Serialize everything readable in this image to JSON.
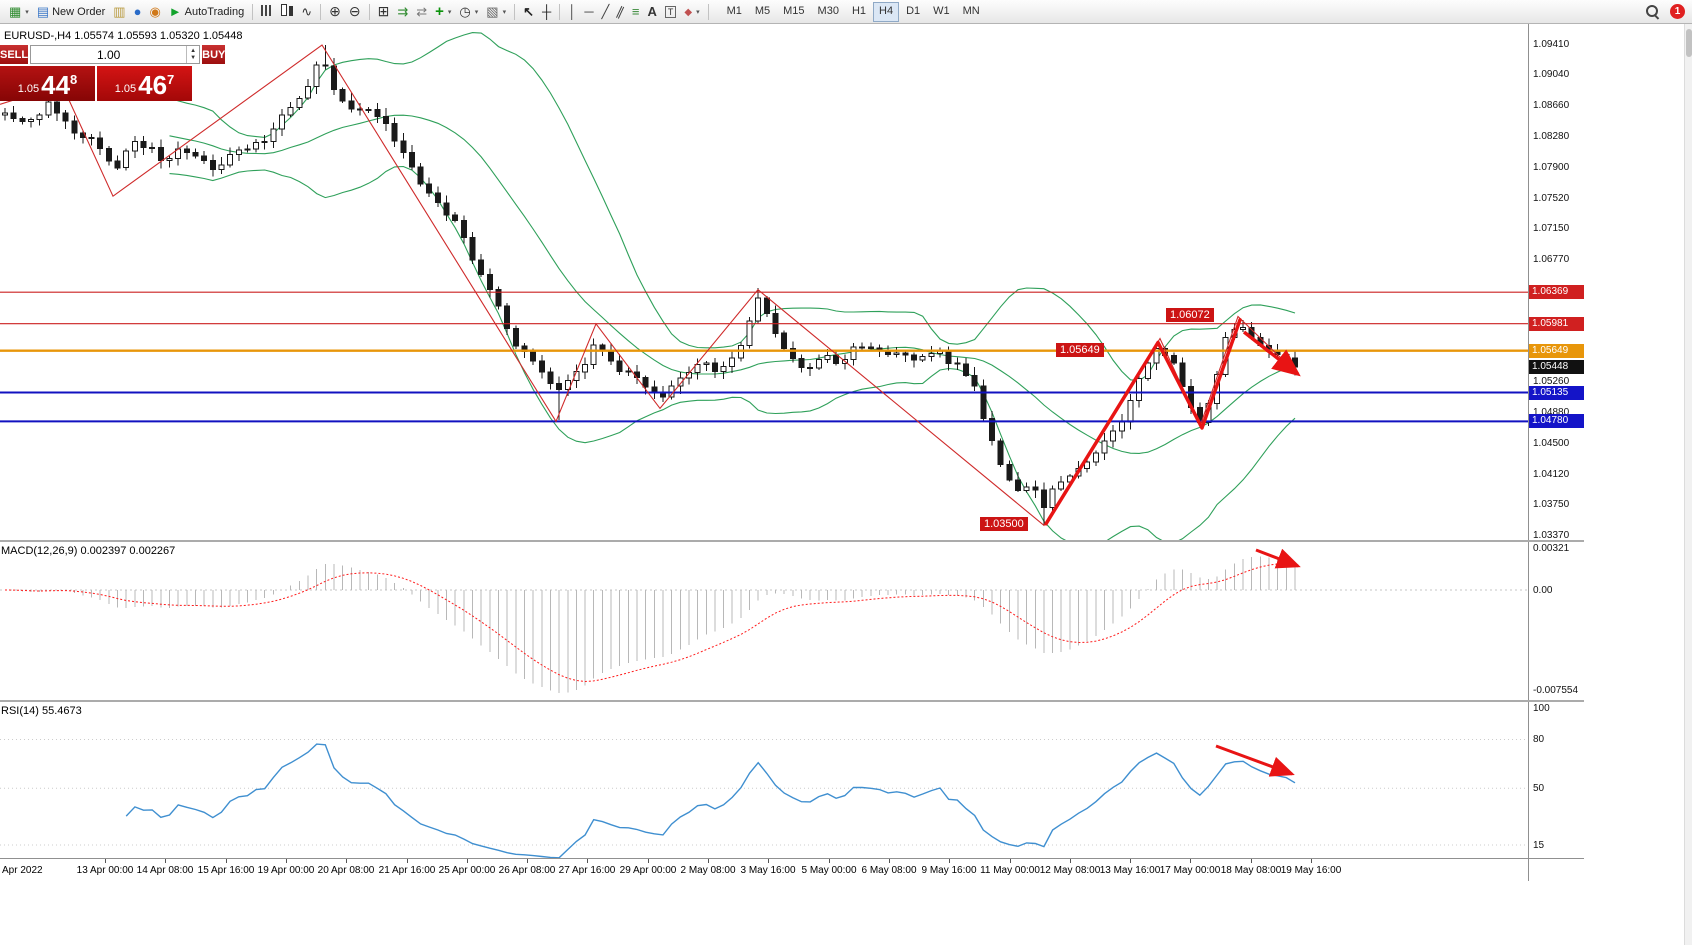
{
  "toolbar": {
    "items": [
      {
        "k": "icon",
        "name": "new-chart-icon",
        "caret": true
      },
      {
        "k": "btn",
        "name": "new-order-button",
        "label": "New Order"
      },
      {
        "k": "icon",
        "name": "print-icon"
      },
      {
        "k": "icon",
        "name": "profile-icon"
      },
      {
        "k": "icon",
        "name": "community-icon"
      },
      {
        "k": "btn",
        "name": "autotrading-button",
        "label": "AutoTrading"
      },
      {
        "k": "sep"
      },
      {
        "k": "icon",
        "name": "bar-chart-icon"
      },
      {
        "k": "icon",
        "name": "candlestick-chart-icon"
      },
      {
        "k": "icon",
        "name": "line-chart-icon"
      },
      {
        "k": "sep"
      },
      {
        "k": "icon",
        "name": "zoom-in-icon"
      },
      {
        "k": "icon",
        "name": "zoom-out-icon"
      },
      {
        "k": "sep"
      },
      {
        "k": "icon",
        "name": "tile-windows-icon"
      },
      {
        "k": "icon",
        "name": "autoscroll-icon"
      },
      {
        "k": "icon",
        "name": "chart-shift-icon"
      },
      {
        "k": "icon",
        "name": "indicators-icon",
        "caret": true
      },
      {
        "k": "icon",
        "name": "periods-icon",
        "caret": true
      },
      {
        "k": "icon",
        "name": "templates-icon",
        "caret": true
      },
      {
        "k": "sep"
      },
      {
        "k": "icon",
        "name": "cursor-icon"
      },
      {
        "k": "icon",
        "name": "crosshair-icon"
      },
      {
        "k": "sep"
      },
      {
        "k": "icon",
        "name": "vertical-line-icon"
      },
      {
        "k": "icon",
        "name": "horizontal-line-icon"
      },
      {
        "k": "icon",
        "name": "trendline-icon"
      },
      {
        "k": "icon",
        "name": "equidistant-channel-icon"
      },
      {
        "k": "icon",
        "name": "fibonacci-icon"
      },
      {
        "k": "icon",
        "name": "text-icon"
      },
      {
        "k": "icon",
        "name": "text-label-icon"
      },
      {
        "k": "icon",
        "name": "shapes-icon",
        "caret": true
      },
      {
        "k": "sep"
      }
    ],
    "timeframes": [
      "M1",
      "M5",
      "M15",
      "M30",
      "H1",
      "H4",
      "D1",
      "W1",
      "MN"
    ],
    "active_timeframe": "H4",
    "notification_count": "1"
  },
  "chart": {
    "title": "EURUSD-,H4 1.05574 1.05593 1.05320 1.05448"
  },
  "one_click": {
    "sell_label": "SELL",
    "buy_label": "BUY",
    "volume": "1.00",
    "sell": {
      "prefix": "1.05",
      "big": "44",
      "sup": "8"
    },
    "buy": {
      "prefix": "1.05",
      "big": "46",
      "sup": "7"
    }
  },
  "price_axis": {
    "ticks": [
      {
        "v": "1.09410",
        "t": "plain"
      },
      {
        "v": "1.09040",
        "t": "plain"
      },
      {
        "v": "1.08660",
        "t": "plain"
      },
      {
        "v": "1.08280",
        "t": "plain"
      },
      {
        "v": "1.07900",
        "t": "plain"
      },
      {
        "v": "1.07520",
        "t": "plain"
      },
      {
        "v": "1.07150",
        "t": "plain"
      },
      {
        "v": "1.06770",
        "t": "plain"
      },
      {
        "v": "1.06369",
        "t": "red"
      },
      {
        "v": "1.05981",
        "t": "red"
      },
      {
        "v": "1.05649",
        "t": "orange"
      },
      {
        "v": "1.05448",
        "t": "black"
      },
      {
        "v": "1.05260",
        "t": "plain"
      },
      {
        "v": "1.05135",
        "t": "blue"
      },
      {
        "v": "1.04880",
        "t": "plain"
      },
      {
        "v": "1.04780",
        "t": "blue"
      },
      {
        "v": "1.04500",
        "t": "plain"
      },
      {
        "v": "1.04120",
        "t": "plain"
      },
      {
        "v": "1.03750",
        "t": "plain"
      },
      {
        "v": "1.03370",
        "t": "plain"
      }
    ]
  },
  "macd": {
    "label": "MACD(12,26,9) 0.002397 0.002267",
    "ticks": [
      "0.00321",
      "0.00",
      "-0.007554"
    ]
  },
  "rsi": {
    "label": "RSI(14) 55.4673",
    "ticks": [
      "100",
      "80",
      "50",
      "15"
    ]
  },
  "time_axis": {
    "labels": [
      "Apr 2022",
      "13 Apr 00:00",
      "14 Apr 08:00",
      "15 Apr 16:00",
      "19 Apr 00:00",
      "20 Apr 08:00",
      "21 Apr 16:00",
      "25 Apr 00:00",
      "26 Apr 08:00",
      "27 Apr 16:00",
      "29 Apr 00:00",
      "2 May 08:00",
      "3 May 16:00",
      "5 May 00:00",
      "6 May 08:00",
      "9 May 16:00",
      "11 May 00:00",
      "12 May 08:00",
      "13 May 16:00",
      "17 May 00:00",
      "18 May 08:00",
      "19 May 16:00"
    ]
  },
  "colors": {
    "candle": "#1a1a1a",
    "band_green": "#2fa05a",
    "zigzag_red": "#cf2b2b",
    "arrow_red": "#e81414",
    "level_red": "#cc2020",
    "level_orange": "#e8960a",
    "level_blue": "#1212c0",
    "hist_gray": "#b8b8b8",
    "signal_red": "#ff1c1c",
    "rsi_blue": "#3f8fd0",
    "annotation_bg": "#cc1414"
  },
  "chart_data": {
    "type": "candlestick",
    "symbol": "EURUSD-",
    "timeframe": "H4",
    "ohlc_display": {
      "open": "1.05574",
      "high": "1.05593",
      "low": "1.05320",
      "close": "1.05448"
    },
    "price_panel": {
      "ylim": [
        1.0337,
        1.0941
      ],
      "candle_count": 150,
      "x_first": 5,
      "x_last": 1295,
      "last_close": 1.05448,
      "bollinger": {
        "period": 20,
        "dev": 2
      },
      "close_anchors": [
        [
          0,
          1.0858
        ],
        [
          25,
          1.0842
        ],
        [
          48,
          1.0868
        ],
        [
          72,
          1.0838
        ],
        [
          95,
          1.0826
        ],
        [
          113,
          1.0788
        ],
        [
          138,
          1.0822
        ],
        [
          162,
          1.0802
        ],
        [
          188,
          1.0812
        ],
        [
          214,
          1.0792
        ],
        [
          240,
          1.0812
        ],
        [
          264,
          1.0826
        ],
        [
          288,
          1.086
        ],
        [
          308,
          1.0893
        ],
        [
          322,
          1.0928
        ],
        [
          338,
          1.0878
        ],
        [
          355,
          1.0856
        ],
        [
          372,
          1.0862
        ],
        [
          392,
          1.0832
        ],
        [
          408,
          1.0796
        ],
        [
          424,
          1.0766
        ],
        [
          440,
          1.0739
        ],
        [
          456,
          1.0722
        ],
        [
          470,
          1.0684
        ],
        [
          486,
          1.0648
        ],
        [
          500,
          1.0622
        ],
        [
          514,
          1.0572
        ],
        [
          530,
          1.0553
        ],
        [
          545,
          1.0533
        ],
        [
          557,
          1.0509
        ],
        [
          572,
          1.0528
        ],
        [
          586,
          1.0552
        ],
        [
          596,
          1.0572
        ],
        [
          610,
          1.0549
        ],
        [
          626,
          1.0537
        ],
        [
          642,
          1.0523
        ],
        [
          660,
          1.0507
        ],
        [
          680,
          1.053
        ],
        [
          700,
          1.0547
        ],
        [
          720,
          1.0542
        ],
        [
          740,
          1.0572
        ],
        [
          758,
          1.0628
        ],
        [
          774,
          1.0592
        ],
        [
          790,
          1.0553
        ],
        [
          806,
          1.0538
        ],
        [
          822,
          1.056
        ],
        [
          840,
          1.0552
        ],
        [
          858,
          1.057
        ],
        [
          878,
          1.0562
        ],
        [
          898,
          1.0566
        ],
        [
          918,
          1.0556
        ],
        [
          938,
          1.0562
        ],
        [
          954,
          1.0546
        ],
        [
          970,
          1.0536
        ],
        [
          984,
          1.0484
        ],
        [
          1000,
          1.0424
        ],
        [
          1014,
          1.0393
        ],
        [
          1030,
          1.0398
        ],
        [
          1044,
          1.0377
        ],
        [
          1058,
          1.0402
        ],
        [
          1074,
          1.0412
        ],
        [
          1090,
          1.0432
        ],
        [
          1104,
          1.0452
        ],
        [
          1120,
          1.0472
        ],
        [
          1134,
          1.0512
        ],
        [
          1148,
          1.0548
        ],
        [
          1160,
          1.0572
        ],
        [
          1174,
          1.0546
        ],
        [
          1188,
          1.0502
        ],
        [
          1200,
          1.0479
        ],
        [
          1214,
          1.0522
        ],
        [
          1226,
          1.0578
        ],
        [
          1238,
          1.0602
        ],
        [
          1252,
          1.0582
        ],
        [
          1264,
          1.0572
        ],
        [
          1278,
          1.0558
        ],
        [
          1295,
          1.0545
        ]
      ],
      "forced_points": [
        {
          "x": 322,
          "type": "high",
          "price": 1.0941
        },
        {
          "x": 556,
          "type": "low",
          "price": 1.048
        },
        {
          "x": 758,
          "type": "high",
          "price": 1.0642
        },
        {
          "x": 1044,
          "type": "low",
          "price": 1.035
        }
      ],
      "levels": [
        {
          "price": 1.06369,
          "color": "red"
        },
        {
          "price": 1.05981,
          "color": "red"
        },
        {
          "price": 1.05649,
          "color": "orange"
        },
        {
          "price": 1.05135,
          "color": "blue"
        },
        {
          "price": 1.0478,
          "color": "blue"
        }
      ]
    },
    "macd_panel": {
      "params": "12,26,9",
      "values": [
        0.002397,
        0.002267
      ],
      "axis": [
        0.00321,
        0,
        -0.007554
      ]
    },
    "rsi_panel": {
      "period": 14,
      "value": 55.4673,
      "axis": [
        100,
        80,
        50,
        15
      ]
    },
    "annotations": {
      "price_labels": [
        {
          "text": "1.06072",
          "x": 1166,
          "price": 1.06072
        },
        {
          "text": "1.05649",
          "x": 1056,
          "price": 1.05649
        },
        {
          "text": "1.03500",
          "x": 980,
          "price": 1.035
        }
      ],
      "thin_zigzag": [
        [
          0,
          1.0868
        ],
        [
          62,
          1.0892
        ],
        [
          113,
          1.0755
        ],
        [
          322,
          1.0941
        ],
        [
          556,
          1.0478
        ],
        [
          596,
          1.0598
        ],
        [
          660,
          1.0494
        ],
        [
          758,
          1.064
        ],
        [
          1044,
          1.035
        ],
        [
          1160,
          1.058
        ],
        [
          1200,
          1.0472
        ],
        [
          1238,
          1.0607
        ],
        [
          1296,
          1.0538
        ]
      ],
      "thick_path": [
        [
          1046,
          1.0352
        ],
        [
          1158,
          1.0575
        ],
        [
          1202,
          1.047
        ],
        [
          1240,
          1.0603
        ]
      ],
      "thick_arrow": [
        [
          1244,
          1.0588
        ],
        [
          1298,
          1.0536
        ]
      ],
      "macd_arrow": [
        [
          1256,
          8
        ],
        [
          1298,
          24
        ]
      ],
      "rsi_arrow": [
        [
          1216,
          44
        ],
        [
          1292,
          72
        ]
      ]
    }
  }
}
